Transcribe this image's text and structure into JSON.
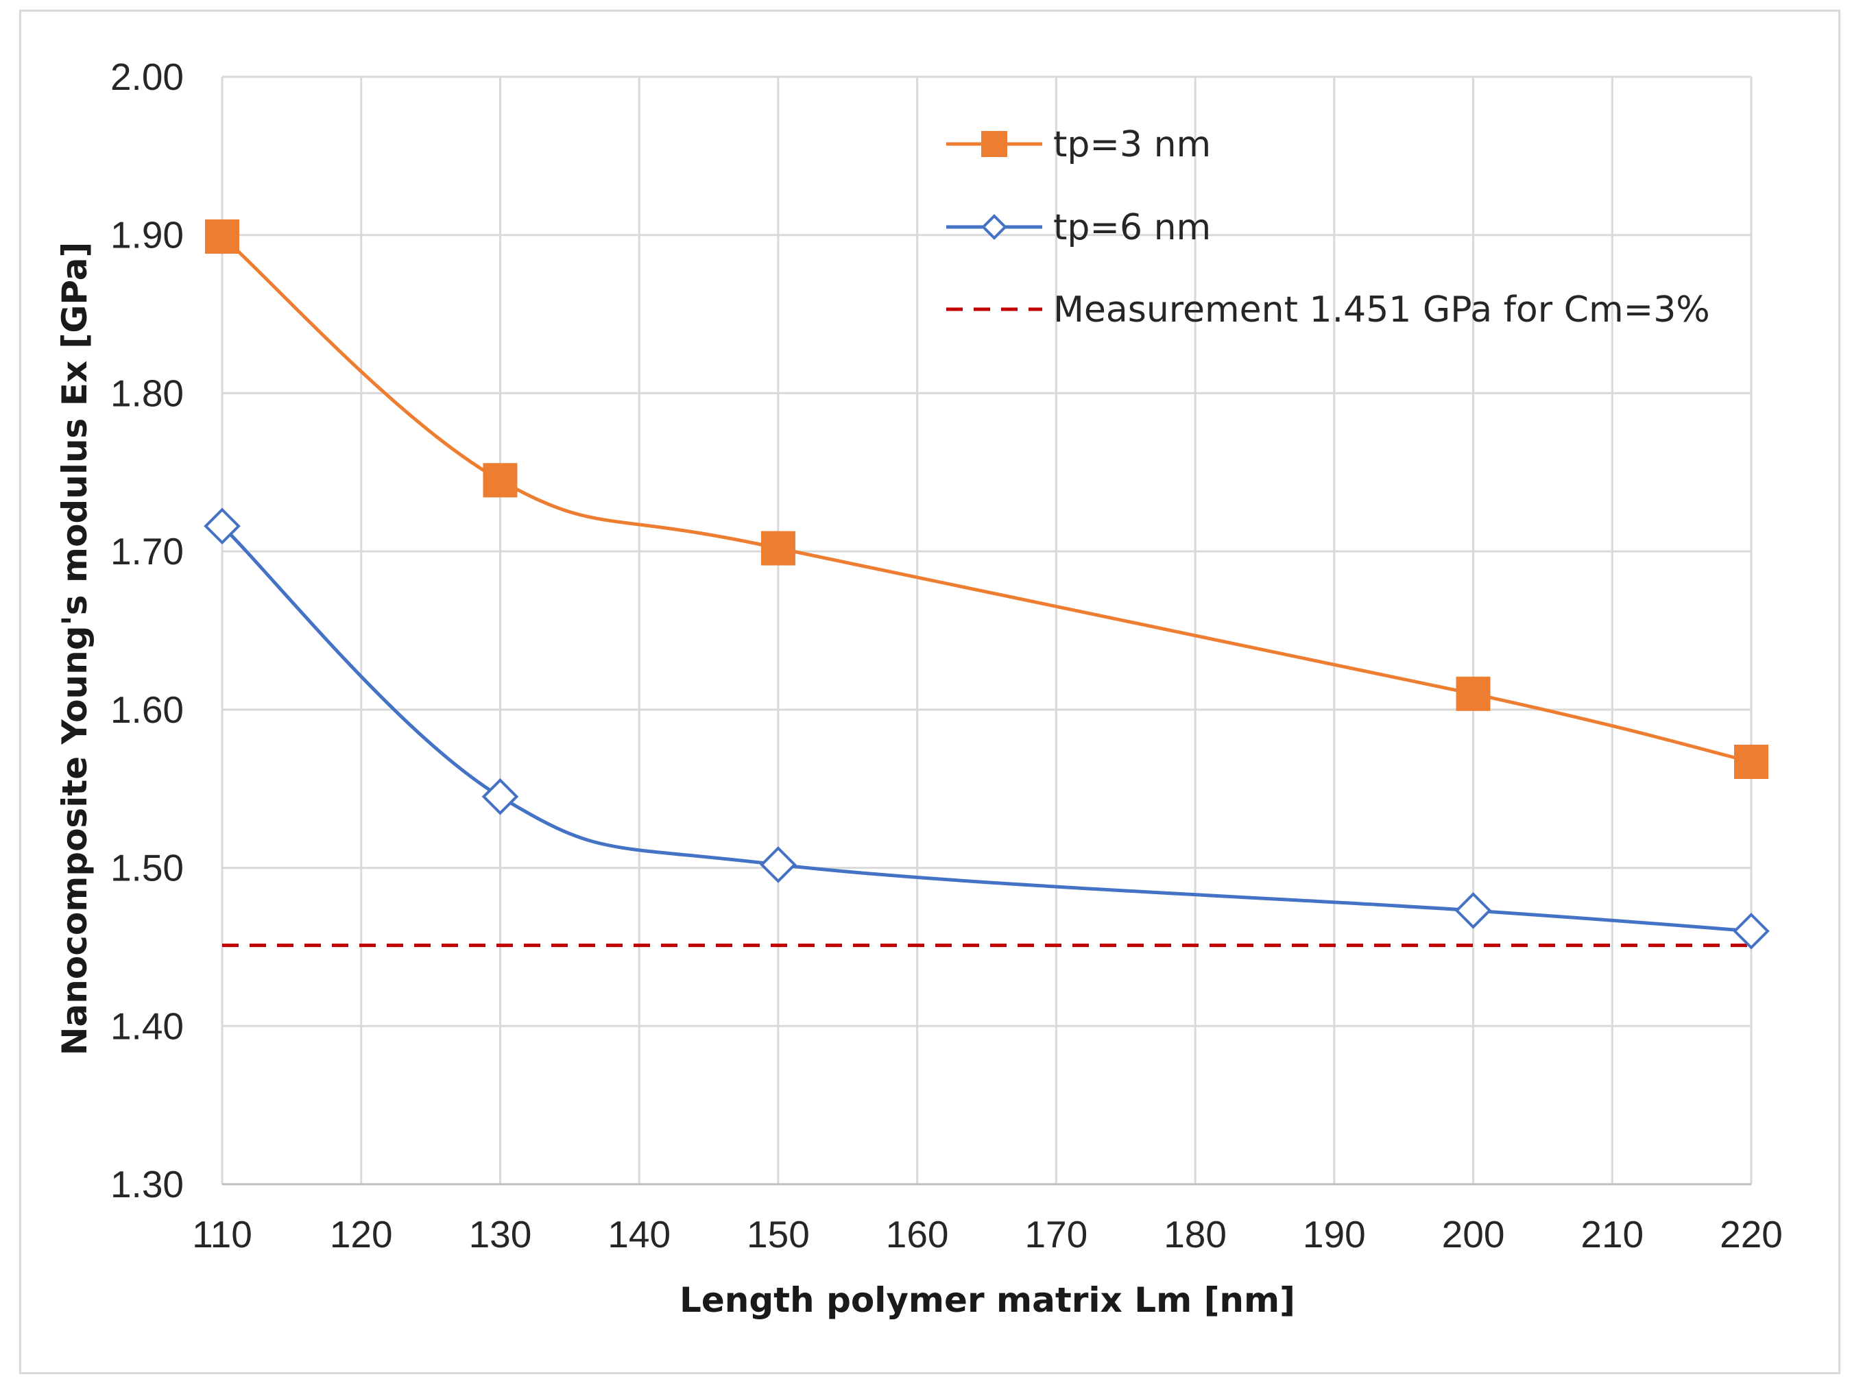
{
  "chart_data": {
    "type": "line",
    "title": "",
    "xlabel": "Length polymer matrix Lm [nm]",
    "ylabel": "Nanocomposite Young's modulus Ex [GPa]",
    "xlim": [
      110,
      220
    ],
    "ylim": [
      1.3,
      2.0
    ],
    "x_ticks": [
      "110",
      "120",
      "130",
      "140",
      "150",
      "160",
      "170",
      "180",
      "190",
      "200",
      "210",
      "220"
    ],
    "y_ticks": [
      "1.30",
      "1.40",
      "1.50",
      "1.60",
      "1.70",
      "1.80",
      "1.90",
      "2.00"
    ],
    "grid": true,
    "legend_position": "top-right",
    "series": [
      {
        "name": "tp=3 nm",
        "color": "#ed7d31",
        "marker": "filled-square",
        "smooth": true,
        "x": [
          110,
          130,
          150,
          200,
          220
        ],
        "y": [
          1.899,
          1.745,
          1.702,
          1.61,
          1.567
        ]
      },
      {
        "name": "tp=6 nm",
        "color": "#4472c4",
        "marker": "open-diamond",
        "smooth": true,
        "x": [
          110,
          130,
          150,
          200,
          220
        ],
        "y": [
          1.716,
          1.545,
          1.502,
          1.473,
          1.46
        ]
      }
    ],
    "reference_line": {
      "name": "Measurement 1.451 GPa for Cm=3%",
      "color": "#c00000",
      "style": "dashed",
      "y": 1.451,
      "x_range": [
        110,
        220
      ]
    }
  }
}
